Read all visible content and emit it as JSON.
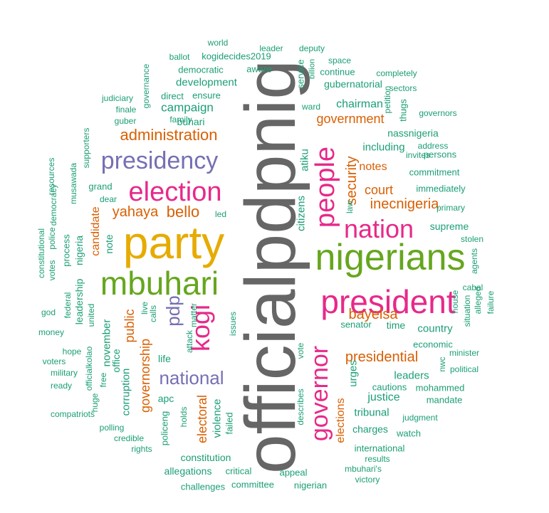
{
  "colors": {
    "gray": "#666666",
    "gold": "#E6AB02",
    "pink": "#E7298A",
    "green": "#66A61E",
    "purple": "#7570B3",
    "orange": "#D95F02",
    "teal": "#1B9E77",
    "background": "#FFFFFF"
  },
  "words": [
    {
      "text": "officialpdpnig",
      "color": "gray"
    },
    {
      "text": "party",
      "color": "gold"
    },
    {
      "text": "nigerians",
      "color": "green"
    },
    {
      "text": "president",
      "color": "pink"
    },
    {
      "text": "mbuhari",
      "color": "green"
    },
    {
      "text": "election",
      "color": "pink"
    },
    {
      "text": "people",
      "color": "pink"
    },
    {
      "text": "nation",
      "color": "pink"
    },
    {
      "text": "governor",
      "color": "pink"
    },
    {
      "text": "presidency",
      "color": "purple"
    },
    {
      "text": "kogi",
      "color": "pink"
    },
    {
      "text": "national",
      "color": "purple"
    },
    {
      "text": "pdp",
      "color": "purple"
    },
    {
      "text": "administration",
      "color": "orange"
    },
    {
      "text": "bello",
      "color": "orange"
    },
    {
      "text": "yahaya",
      "color": "orange"
    },
    {
      "text": "presidential",
      "color": "orange"
    },
    {
      "text": "bayelsa",
      "color": "orange"
    },
    {
      "text": "inecnigeria",
      "color": "orange"
    },
    {
      "text": "security",
      "color": "orange"
    },
    {
      "text": "government",
      "color": "orange"
    },
    {
      "text": "governorship",
      "color": "orange"
    },
    {
      "text": "court",
      "color": "orange"
    },
    {
      "text": "notes",
      "color": "orange"
    },
    {
      "text": "elections",
      "color": "orange"
    },
    {
      "text": "electoral",
      "color": "orange"
    },
    {
      "text": "public",
      "color": "orange"
    },
    {
      "text": "candidate",
      "color": "orange"
    },
    {
      "text": "campaign",
      "color": "teal"
    },
    {
      "text": "development",
      "color": "teal"
    },
    {
      "text": "buhari",
      "color": "teal"
    },
    {
      "text": "chairman",
      "color": "teal"
    },
    {
      "text": "atiku",
      "color": "teal"
    },
    {
      "text": "citizens",
      "color": "teal"
    },
    {
      "text": "justice",
      "color": "teal"
    },
    {
      "text": "leaders",
      "color": "teal"
    },
    {
      "text": "country",
      "color": "teal"
    },
    {
      "text": "including",
      "color": "teal"
    },
    {
      "text": "nassnigeria",
      "color": "teal"
    },
    {
      "text": "november",
      "color": "teal"
    },
    {
      "text": "corruption",
      "color": "teal"
    },
    {
      "text": "violence",
      "color": "teal"
    },
    {
      "text": "tribunal",
      "color": "teal"
    },
    {
      "text": "urges",
      "color": "teal"
    },
    {
      "text": "time",
      "color": "teal"
    },
    {
      "text": "senator",
      "color": "teal"
    },
    {
      "text": "charges",
      "color": "teal"
    },
    {
      "text": "apc",
      "color": "teal"
    },
    {
      "text": "life",
      "color": "teal"
    },
    {
      "text": "note",
      "color": "teal"
    },
    {
      "text": "nigeria",
      "color": "teal"
    },
    {
      "text": "process",
      "color": "teal"
    },
    {
      "text": "grand",
      "color": "teal"
    },
    {
      "text": "leadership",
      "color": "teal"
    },
    {
      "text": "office",
      "color": "teal"
    },
    {
      "text": "economic",
      "color": "teal"
    },
    {
      "text": "supreme",
      "color": "teal"
    },
    {
      "text": "immediately",
      "color": "teal"
    },
    {
      "text": "commitment",
      "color": "teal"
    },
    {
      "text": "persons",
      "color": "teal"
    },
    {
      "text": "allegations",
      "color": "teal"
    },
    {
      "text": "constitution",
      "color": "teal"
    },
    {
      "text": "committee",
      "color": "teal"
    },
    {
      "text": "mohammed",
      "color": "teal"
    },
    {
      "text": "mandate",
      "color": "teal"
    },
    {
      "text": "cautions",
      "color": "teal"
    },
    {
      "text": "judgment",
      "color": "teal"
    },
    {
      "text": "watch",
      "color": "teal"
    },
    {
      "text": "international",
      "color": "teal"
    },
    {
      "text": "results",
      "color": "teal"
    },
    {
      "text": "mbuhari's",
      "color": "teal"
    },
    {
      "text": "victory",
      "color": "teal"
    },
    {
      "text": "nigerian",
      "color": "teal"
    },
    {
      "text": "appeal",
      "color": "teal"
    },
    {
      "text": "challenges",
      "color": "teal"
    },
    {
      "text": "critical",
      "color": "teal"
    },
    {
      "text": "policeng",
      "color": "teal"
    },
    {
      "text": "failed",
      "color": "teal"
    },
    {
      "text": "holds",
      "color": "teal"
    },
    {
      "text": "huge",
      "color": "teal"
    },
    {
      "text": "free",
      "color": "teal"
    },
    {
      "text": "credible",
      "color": "teal"
    },
    {
      "text": "rights",
      "color": "teal"
    },
    {
      "text": "polling",
      "color": "teal"
    },
    {
      "text": "compatriots",
      "color": "teal"
    },
    {
      "text": "ready",
      "color": "teal"
    },
    {
      "text": "military",
      "color": "teal"
    },
    {
      "text": "voters",
      "color": "teal"
    },
    {
      "text": "hope",
      "color": "teal"
    },
    {
      "text": "money",
      "color": "teal"
    },
    {
      "text": "god",
      "color": "teal"
    },
    {
      "text": "officialkolao",
      "color": "teal"
    },
    {
      "text": "united",
      "color": "teal"
    },
    {
      "text": "federal",
      "color": "teal"
    },
    {
      "text": "votes",
      "color": "teal"
    },
    {
      "text": "constitutional",
      "color": "teal"
    },
    {
      "text": "police",
      "color": "teal"
    },
    {
      "text": "democracy",
      "color": "teal"
    },
    {
      "text": "resources",
      "color": "teal"
    },
    {
      "text": "musawada",
      "color": "teal"
    },
    {
      "text": "supporters",
      "color": "teal"
    },
    {
      "text": "judiciary",
      "color": "teal"
    },
    {
      "text": "finale",
      "color": "teal"
    },
    {
      "text": "guber",
      "color": "teal"
    },
    {
      "text": "governance",
      "color": "teal"
    },
    {
      "text": "family",
      "color": "teal"
    },
    {
      "text": "direct",
      "color": "teal"
    },
    {
      "text": "ensure",
      "color": "teal"
    },
    {
      "text": "democratic",
      "color": "teal"
    },
    {
      "text": "ballot",
      "color": "teal"
    },
    {
      "text": "kogidecides2019",
      "color": "teal"
    },
    {
      "text": "world",
      "color": "teal"
    },
    {
      "text": "leader",
      "color": "teal"
    },
    {
      "text": "aware",
      "color": "teal"
    },
    {
      "text": "deputy",
      "color": "teal"
    },
    {
      "text": "billion",
      "color": "teal"
    },
    {
      "text": "service",
      "color": "teal"
    },
    {
      "text": "space",
      "color": "teal"
    },
    {
      "text": "continue",
      "color": "teal"
    },
    {
      "text": "gubernatorial",
      "color": "teal"
    },
    {
      "text": "completely",
      "color": "teal"
    },
    {
      "text": "sectors",
      "color": "teal"
    },
    {
      "text": "petition",
      "color": "teal"
    },
    {
      "text": "ward",
      "color": "teal"
    },
    {
      "text": "governors",
      "color": "teal"
    },
    {
      "text": "thugs",
      "color": "teal"
    },
    {
      "text": "address",
      "color": "teal"
    },
    {
      "text": "invites",
      "color": "teal"
    },
    {
      "text": "primary",
      "color": "teal"
    },
    {
      "text": "stolen",
      "color": "teal"
    },
    {
      "text": "agents",
      "color": "teal"
    },
    {
      "text": "cabal",
      "color": "teal"
    },
    {
      "text": "house",
      "color": "teal"
    },
    {
      "text": "situation",
      "color": "teal"
    },
    {
      "text": "alleged",
      "color": "teal"
    },
    {
      "text": "failure",
      "color": "teal"
    },
    {
      "text": "minister",
      "color": "teal"
    },
    {
      "text": "political",
      "color": "teal"
    },
    {
      "text": "nwc",
      "color": "teal"
    },
    {
      "text": "law",
      "color": "teal"
    },
    {
      "text": "vote",
      "color": "teal"
    },
    {
      "text": "describes",
      "color": "teal"
    },
    {
      "text": "issues",
      "color": "teal"
    },
    {
      "text": "attack",
      "color": "teal"
    },
    {
      "text": "matter",
      "color": "teal"
    },
    {
      "text": "calls",
      "color": "teal"
    },
    {
      "text": "live",
      "color": "teal"
    },
    {
      "text": "led",
      "color": "teal"
    },
    {
      "text": "dear",
      "color": "teal"
    }
  ]
}
